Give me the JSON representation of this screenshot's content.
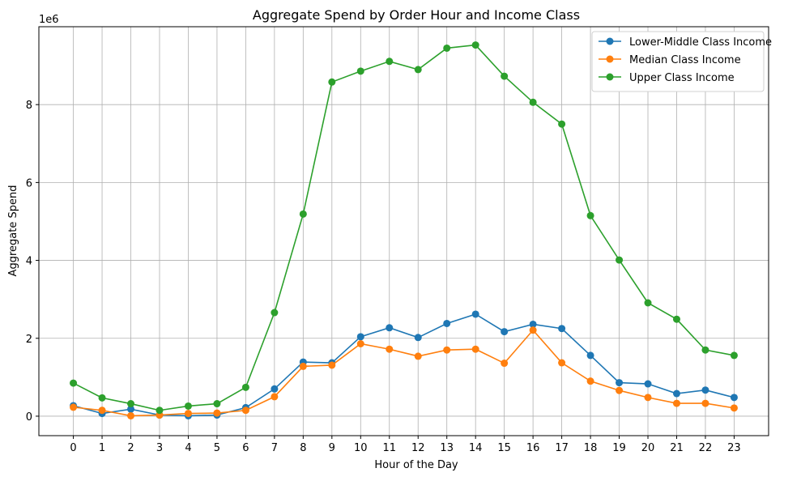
{
  "chart_data": {
    "type": "line",
    "title": "Aggregate Spend by Order Hour and Income Class",
    "xlabel": "Hour of the Day",
    "ylabel": "Aggregate Spend",
    "y_multiplier_label": "1e6",
    "x": [
      0,
      1,
      2,
      3,
      4,
      5,
      6,
      7,
      8,
      9,
      10,
      11,
      12,
      13,
      14,
      15,
      16,
      17,
      18,
      19,
      20,
      21,
      22,
      23
    ],
    "xlim": [
      -1.2,
      24.2
    ],
    "ylim": [
      -0.5,
      10.0
    ],
    "y_ticks": [
      0,
      2,
      4,
      6,
      8
    ],
    "y_tick_labels": [
      "0",
      "2",
      "4",
      "6",
      "8"
    ],
    "grid": true,
    "legend_position": "top-right",
    "series": [
      {
        "name": "Lower-Middle Class Income",
        "color": "#1f77b4",
        "values": [
          0.27,
          0.07,
          0.18,
          0.03,
          0.01,
          0.03,
          0.22,
          0.7,
          1.39,
          1.37,
          2.04,
          2.27,
          2.02,
          2.38,
          2.62,
          2.17,
          2.36,
          2.25,
          1.56,
          0.86,
          0.83,
          0.58,
          0.67,
          0.48
        ]
      },
      {
        "name": "Median Class Income",
        "color": "#ff7f0e",
        "values": [
          0.23,
          0.15,
          0.01,
          0.03,
          0.07,
          0.08,
          0.15,
          0.5,
          1.28,
          1.31,
          1.86,
          1.72,
          1.54,
          1.7,
          1.72,
          1.36,
          2.21,
          1.37,
          0.9,
          0.66,
          0.48,
          0.33,
          0.33,
          0.21
        ]
      },
      {
        "name": "Upper Class Income",
        "color": "#2ca02c",
        "values": [
          0.85,
          0.47,
          0.32,
          0.15,
          0.26,
          0.32,
          0.74,
          2.66,
          5.19,
          8.58,
          8.86,
          9.11,
          8.9,
          9.45,
          9.53,
          8.73,
          8.06,
          7.5,
          5.15,
          4.01,
          2.91,
          2.49,
          1.7,
          1.56
        ]
      }
    ]
  }
}
